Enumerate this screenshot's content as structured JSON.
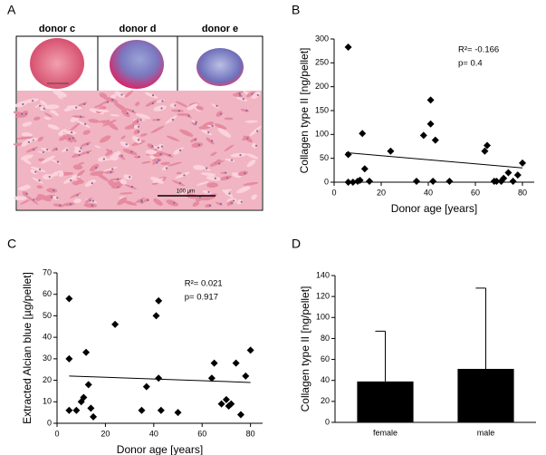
{
  "panel_a": {
    "label": "A",
    "images": [
      "donor c",
      "donor d",
      "donor e"
    ],
    "scale_bar": "100 µm"
  },
  "chart_data": [
    {
      "type": "scatter",
      "panel": "B",
      "xlabel": "Donor age [years]",
      "ylabel": "Collagen type II [ng/pellet]",
      "annotations": [
        "R²= -0.166",
        "p= 0.4"
      ],
      "x": [
        6,
        6,
        6,
        8,
        10,
        11,
        12,
        13,
        15,
        24,
        35,
        38,
        41,
        41,
        42,
        43,
        49,
        64,
        65,
        68,
        69,
        71,
        72,
        74,
        76,
        78,
        80
      ],
      "values": [
        283,
        58,
        0,
        0,
        2,
        4,
        102,
        28,
        2,
        65,
        2,
        98,
        172,
        122,
        2,
        88,
        2,
        65,
        77,
        2,
        2,
        2,
        8,
        20,
        2,
        15,
        40
      ],
      "trendline": {
        "x": [
          5,
          80
        ],
        "y": [
          62,
          30
        ]
      },
      "color": "#000000",
      "xlim": [
        0,
        85
      ],
      "xticks": [
        0,
        20,
        40,
        60,
        80
      ],
      "ylim": [
        0,
        300
      ],
      "yticks": [
        0,
        50,
        100,
        150,
        200,
        250,
        300
      ]
    },
    {
      "type": "scatter",
      "panel": "C",
      "xlabel": "Donor age [years]",
      "ylabel": "Extracted Alcian blue [µg/pellet]",
      "annotations": [
        "R²= 0.021",
        "p= 0.917"
      ],
      "x": [
        5,
        5,
        5,
        8,
        10,
        11,
        12,
        13,
        14,
        15,
        24,
        35,
        37,
        41,
        42,
        42,
        43,
        50,
        64,
        65,
        68,
        70,
        71,
        72,
        74,
        76,
        78,
        80
      ],
      "values": [
        58,
        30,
        6,
        6,
        10,
        12,
        33,
        18,
        7,
        3,
        46,
        6,
        17,
        50,
        57,
        21,
        6,
        5,
        21,
        28,
        9,
        11,
        8,
        9,
        28,
        4,
        22,
        34
      ],
      "trendline": {
        "x": [
          5,
          80
        ],
        "y": [
          22,
          19
        ]
      },
      "color": "#000000",
      "xlim": [
        0,
        85
      ],
      "xticks": [
        0,
        20,
        40,
        60,
        80
      ],
      "ylim": [
        0,
        70
      ],
      "yticks": [
        0,
        10,
        20,
        30,
        40,
        50,
        60,
        70
      ]
    },
    {
      "type": "bar",
      "panel": "D",
      "ylabel": "Collagen type II [ng/pellet]",
      "categories": [
        "female",
        "male"
      ],
      "values": [
        39,
        51
      ],
      "errors": [
        48,
        77
      ],
      "color": "#000000",
      "ylim": [
        0,
        140
      ],
      "yticks": [
        0,
        20,
        40,
        60,
        80,
        100,
        120,
        140
      ]
    }
  ]
}
